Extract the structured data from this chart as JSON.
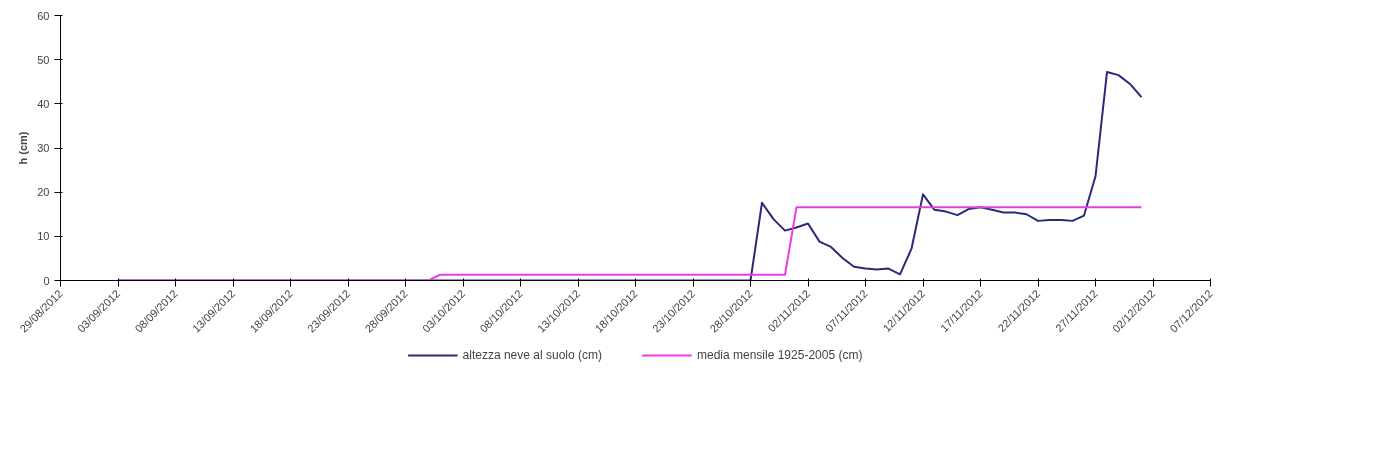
{
  "chart_data": {
    "type": "line",
    "ylabel": "h (cm)",
    "xlim": [
      "2012-08-29",
      "2012-12-07"
    ],
    "xticks": [
      {
        "value": "2012-08-29",
        "label": "29/08/2012"
      },
      {
        "value": "2012-09-03",
        "label": "03/09/2012"
      },
      {
        "value": "2012-09-08",
        "label": "08/09/2012"
      },
      {
        "value": "2012-09-13",
        "label": "13/09/2012"
      },
      {
        "value": "2012-09-18",
        "label": "18/09/2012"
      },
      {
        "value": "2012-09-23",
        "label": "23/09/2012"
      },
      {
        "value": "2012-09-28",
        "label": "28/09/2012"
      },
      {
        "value": "2012-10-03",
        "label": "03/10/2012"
      },
      {
        "value": "2012-10-08",
        "label": "08/10/2012"
      },
      {
        "value": "2012-10-13",
        "label": "13/10/2012"
      },
      {
        "value": "2012-10-18",
        "label": "18/10/2012"
      },
      {
        "value": "2012-10-23",
        "label": "23/10/2012"
      },
      {
        "value": "2012-10-28",
        "label": "28/10/2012"
      },
      {
        "value": "2012-11-02",
        "label": "02/11/2012"
      },
      {
        "value": "2012-11-07",
        "label": "07/11/2012"
      },
      {
        "value": "2012-11-12",
        "label": "12/11/2012"
      },
      {
        "value": "2012-11-17",
        "label": "17/11/2012"
      },
      {
        "value": "2012-11-22",
        "label": "22/11/2012"
      },
      {
        "value": "2012-11-27",
        "label": "27/11/2012"
      },
      {
        "value": "2012-12-02",
        "label": "02/12/2012"
      },
      {
        "value": "2012-12-07",
        "label": "07/12/2012"
      }
    ],
    "ylim": [
      0,
      60
    ],
    "yticks": [
      0,
      10,
      20,
      30,
      40,
      50,
      60
    ],
    "grid": false,
    "legend": "bottom",
    "marker": "none",
    "line_style": "solid",
    "series": [
      {
        "name": "altezza neve al suolo (cm)",
        "color": "#2b2a78",
        "x": [
          "2012-09-03",
          "2012-10-28",
          "2012-10-29",
          "2012-10-30",
          "2012-10-31",
          "2012-11-01",
          "2012-11-02",
          "2012-11-03",
          "2012-11-04",
          "2012-11-05",
          "2012-11-06",
          "2012-11-07",
          "2012-11-08",
          "2012-11-09",
          "2012-11-10",
          "2012-11-11",
          "2012-11-12",
          "2012-11-13",
          "2012-11-14",
          "2012-11-15",
          "2012-11-16",
          "2012-11-17",
          "2012-11-18",
          "2012-11-19",
          "2012-11-20",
          "2012-11-21",
          "2012-11-22",
          "2012-11-23",
          "2012-11-24",
          "2012-11-25",
          "2012-11-26",
          "2012-11-27",
          "2012-11-28",
          "2012-11-29",
          "2012-11-30",
          "2012-12-01"
        ],
        "values": [
          0,
          0,
          17.6,
          13.9,
          11.3,
          12,
          12.9,
          8.8,
          7.6,
          5.1,
          3.1,
          2.7,
          2.5,
          2.7,
          1.4,
          7.2,
          19.5,
          16,
          15.6,
          14.8,
          16.2,
          16.6,
          16,
          15.4,
          15.4,
          15,
          13.5,
          13.7,
          13.7,
          13.5,
          14.7,
          23.6,
          47.2,
          46.5,
          44.5,
          41.5
        ]
      },
      {
        "name": "media mensile 1925-2005 (cm)",
        "color": "#e83ce8",
        "x": [
          "2012-09-03",
          "2012-09-30",
          "2012-10-01",
          "2012-10-31",
          "2012-11-01",
          "2012-12-01"
        ],
        "values": [
          0,
          0,
          1.3,
          1.3,
          16.6,
          16.6
        ]
      }
    ]
  }
}
